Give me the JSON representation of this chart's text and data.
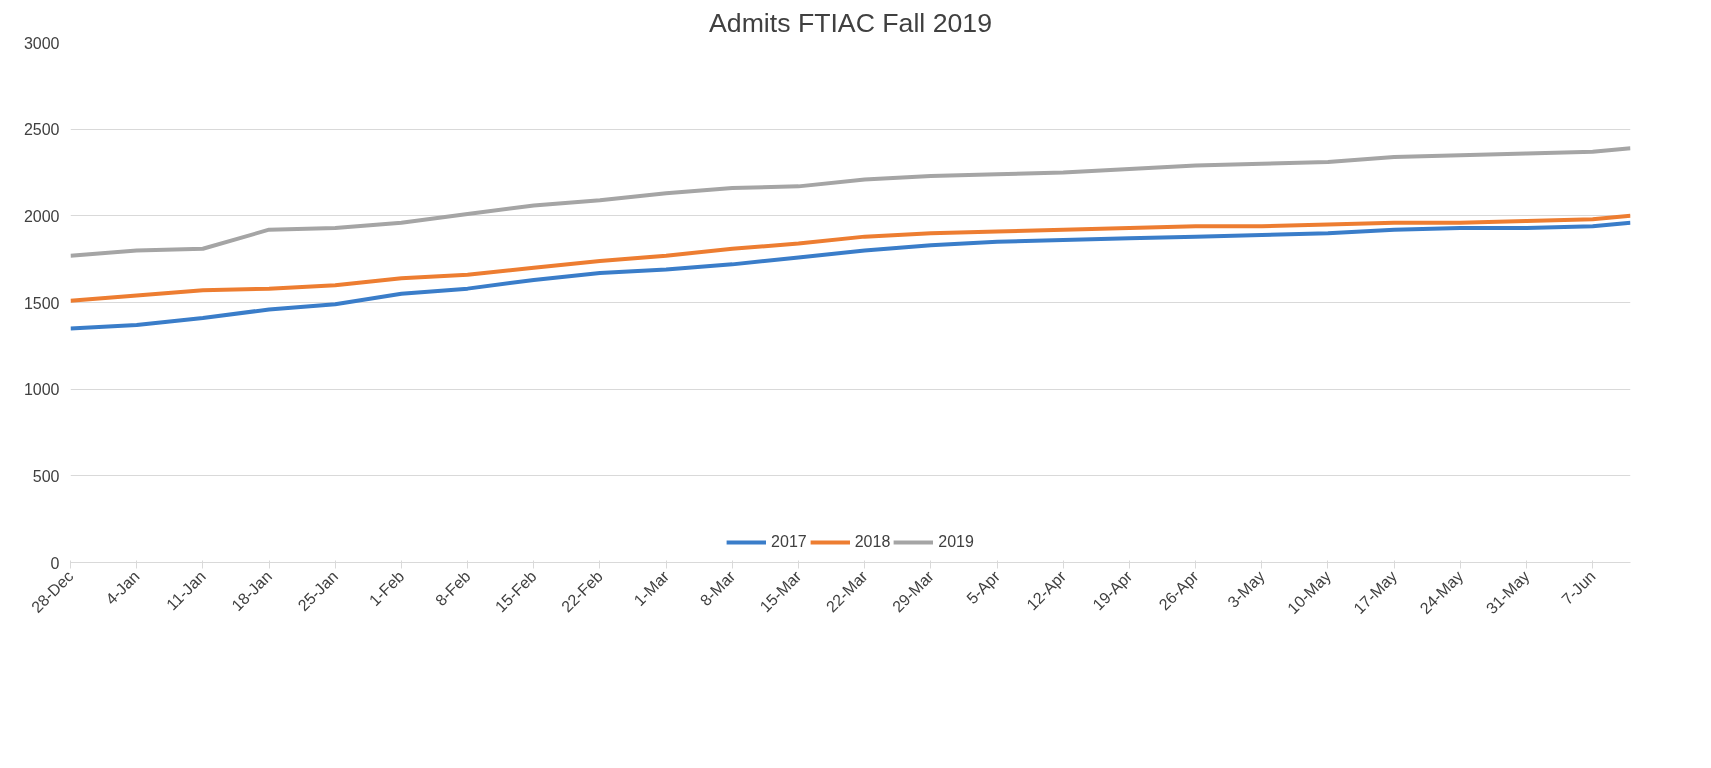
{
  "chart_data": {
    "type": "line",
    "title": "Admits FTIAC Fall 2019",
    "x": [
      "2018-12-28",
      "2019-01-04",
      "2019-01-11",
      "2019-01-18",
      "2019-01-25",
      "2019-02-01",
      "2019-02-08",
      "2019-02-15",
      "2019-02-22",
      "2019-03-01",
      "2019-03-08",
      "2019-03-15",
      "2019-03-22",
      "2019-03-29",
      "2019-04-05",
      "2019-04-12",
      "2019-04-19",
      "2019-04-26",
      "2019-05-03",
      "2019-05-10",
      "2019-05-17",
      "2019-05-24",
      "2019-05-31",
      "2019-06-07",
      "2019-06-11"
    ],
    "series": [
      {
        "name": "2017",
        "color": "#3a7dc9",
        "values": [
          1350,
          1370,
          1410,
          1460,
          1490,
          1550,
          1580,
          1630,
          1670,
          1690,
          1720,
          1760,
          1800,
          1830,
          1850,
          1860,
          1870,
          1880,
          1890,
          1900,
          1920,
          1930,
          1930,
          1940,
          1960
        ]
      },
      {
        "name": "2018",
        "color": "#ed7d31",
        "values": [
          1510,
          1540,
          1570,
          1580,
          1600,
          1640,
          1660,
          1700,
          1740,
          1770,
          1810,
          1840,
          1880,
          1900,
          1910,
          1920,
          1930,
          1940,
          1940,
          1950,
          1960,
          1960,
          1970,
          1980,
          2000
        ]
      },
      {
        "name": "2019",
        "color": "#a5a5a5",
        "values": [
          1770,
          1800,
          1810,
          1920,
          1930,
          1960,
          2010,
          2060,
          2090,
          2130,
          2160,
          2170,
          2210,
          2230,
          2240,
          2250,
          2270,
          2290,
          2300,
          2310,
          2340,
          2350,
          2360,
          2370,
          2390
        ]
      }
    ],
    "xlim": [
      "2018-12-28",
      "2019-06-11"
    ],
    "xticks": [
      {
        "value": "2018-12-28",
        "label": "28-Dec"
      },
      {
        "value": "2019-01-04",
        "label": "4-Jan"
      },
      {
        "value": "2019-01-11",
        "label": "11-Jan"
      },
      {
        "value": "2019-01-18",
        "label": "18-Jan"
      },
      {
        "value": "2019-01-25",
        "label": "25-Jan"
      },
      {
        "value": "2019-02-01",
        "label": "1-Feb"
      },
      {
        "value": "2019-02-08",
        "label": "8-Feb"
      },
      {
        "value": "2019-02-15",
        "label": "15-Feb"
      },
      {
        "value": "2019-02-22",
        "label": "22-Feb"
      },
      {
        "value": "2019-03-01",
        "label": "1-Mar"
      },
      {
        "value": "2019-03-08",
        "label": "8-Mar"
      },
      {
        "value": "2019-03-15",
        "label": "15-Mar"
      },
      {
        "value": "2019-03-22",
        "label": "22-Mar"
      },
      {
        "value": "2019-03-29",
        "label": "29-Mar"
      },
      {
        "value": "2019-04-05",
        "label": "5-Apr"
      },
      {
        "value": "2019-04-12",
        "label": "12-Apr"
      },
      {
        "value": "2019-04-19",
        "label": "19-Apr"
      },
      {
        "value": "2019-04-26",
        "label": "26-Apr"
      },
      {
        "value": "2019-05-03",
        "label": "3-May"
      },
      {
        "value": "2019-05-10",
        "label": "10-May"
      },
      {
        "value": "2019-05-17",
        "label": "17-May"
      },
      {
        "value": "2019-05-24",
        "label": "24-May"
      },
      {
        "value": "2019-05-31",
        "label": "31-May"
      },
      {
        "value": "2019-06-07",
        "label": "7-Jun"
      }
    ],
    "ylim": [
      0,
      3000
    ],
    "yticks": [
      0,
      500,
      1000,
      1500,
      2000,
      2500,
      3000
    ],
    "grid": "y",
    "legend": "bottom",
    "marker": "none",
    "line_style": "solid"
  }
}
